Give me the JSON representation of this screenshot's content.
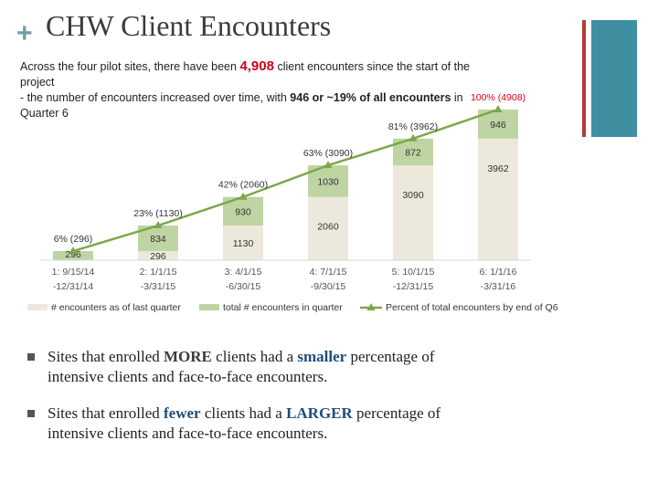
{
  "slide": {
    "plus": "+",
    "title": "CHW Client Encounters",
    "intro": {
      "line1_pre": "Across the four pilot sites, there have been ",
      "highlight": "4,908",
      "line1_post": " client encounters since the start of the project",
      "line2_pre": "- the number of encounters increased over time, with ",
      "line2_bold": "946 or ~19% of all encounters",
      "line2_post": " in Quarter 6"
    },
    "bullets": [
      {
        "p1": "Sites that enrolled ",
        "em": "MORE",
        "p2": " clients had a ",
        "em2": "smaller",
        "p3": " percentage of",
        "p4": "intensive clients and face-to-face encounters."
      },
      {
        "p1": "Sites that enrolled ",
        "em": "fewer",
        "p2": " clients had a ",
        "em2": "LARGER",
        "p3": " percentage of",
        "p4": "intensive clients and face-to-face encounters."
      }
    ]
  },
  "colors": {
    "base": "#ece9dc",
    "quarter": "#bfd4a3",
    "line": "#7ba84a",
    "accent_red": "#d0021b"
  },
  "chart_data": {
    "type": "bar",
    "stacked": true,
    "categories": [
      [
        "1: 9/15/14",
        "-12/31/14"
      ],
      [
        "2: 1/1/15",
        "-3/31/15"
      ],
      [
        "3: 4/1/15",
        "-6/30/15"
      ],
      [
        "4: 7/1/15",
        "-9/30/15"
      ],
      [
        "5: 10/1/15",
        "-12/31/15"
      ],
      [
        "6: 1/1/16",
        "-3/31/16"
      ]
    ],
    "series": [
      {
        "name": "# encounters as of last quarter",
        "values": [
          0,
          296,
          1130,
          2060,
          3090,
          3962
        ]
      },
      {
        "name": "total # encounters in quarter",
        "values": [
          296,
          834,
          930,
          1030,
          872,
          946
        ]
      }
    ],
    "line": {
      "name": "Percent of total encounters by end of Q6",
      "values": [
        296,
        1130,
        2060,
        3090,
        3962,
        4908
      ],
      "labels": [
        "6% (296)",
        "23% (1130)",
        "42% (2060)",
        "63% (3090)",
        "81% (3962)",
        "100% (4908)"
      ]
    },
    "base_labels": [
      "",
      "296",
      "1130",
      "2060",
      "3090",
      "3962"
    ],
    "quarter_labels": [
      "296",
      "834",
      "930",
      "1030",
      "872",
      "946"
    ],
    "ylim": [
      0,
      4908
    ]
  }
}
